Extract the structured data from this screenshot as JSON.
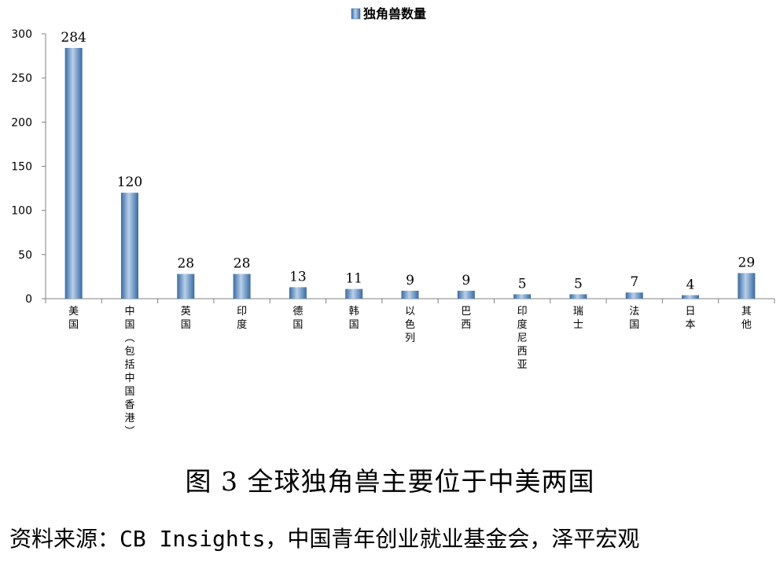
{
  "chart_data": {
    "type": "bar",
    "series": [
      {
        "name": "独角兽数量",
        "values": [
          284,
          120,
          28,
          28,
          13,
          11,
          9,
          9,
          5,
          5,
          7,
          4,
          29
        ]
      }
    ],
    "categories": [
      "美国",
      "中国（包括中国香港）",
      "英国",
      "印度",
      "德国",
      "韩国",
      "以色列",
      "巴西",
      "印度尼西亚",
      "瑞士",
      "法国",
      "日本",
      "其他"
    ],
    "ylim": [
      0,
      300
    ],
    "yticks": [
      0,
      50,
      100,
      150,
      200,
      250,
      300
    ],
    "legend": "top-center",
    "grid": false,
    "bar_color": "#4a7fb8",
    "bar_highlight": "#b8d0ea"
  },
  "caption": "图 3  全球独角兽主要位于中美两国",
  "source": "资料来源：CB Insights，中国青年创业就业基金会，泽平宏观"
}
